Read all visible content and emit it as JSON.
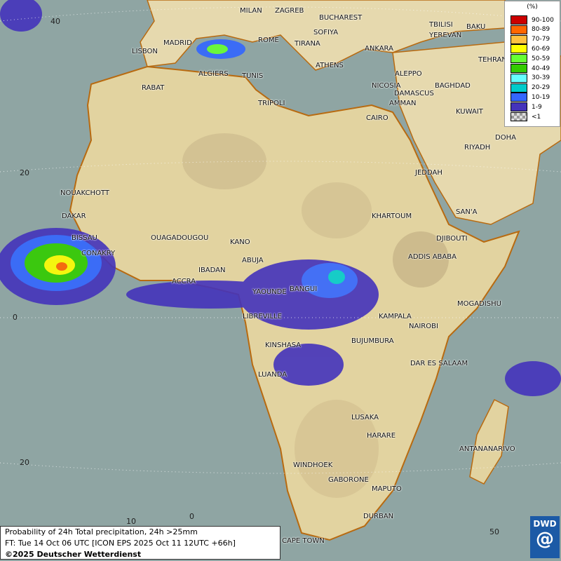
{
  "map": {
    "title": "Probability of 24h Total precipitation, 24h >25mm",
    "forecast_time": "FT: Tue 14 Oct 06 UTC [ICON EPS 2025 Oct 11 12UTC +66h]",
    "copyright": "©2025 Deutscher Wetterdienst",
    "logo": "DWD"
  },
  "legend": {
    "unit": "(%)",
    "items": [
      {
        "label": "90-100",
        "color": "#cc0000"
      },
      {
        "label": "80-89",
        "color": "#ff6600"
      },
      {
        "label": "70-79",
        "color": "#ffc040"
      },
      {
        "label": "60-69",
        "color": "#ffff00"
      },
      {
        "label": "50-59",
        "color": "#66ff33"
      },
      {
        "label": "40-49",
        "color": "#33cc00"
      },
      {
        "label": "30-39",
        "color": "#66ffff"
      },
      {
        "label": "20-29",
        "color": "#00cccc"
      },
      {
        "label": "10-19",
        "color": "#3366ff"
      },
      {
        "label": "1-9",
        "color": "#4433bb"
      },
      {
        "label": "<1",
        "color": "#bbbbbb"
      }
    ]
  },
  "lat_labels": [
    "40",
    "20",
    "0",
    "20"
  ],
  "lon_labels": [
    "10",
    "0",
    "50"
  ],
  "cities": [
    "MILAN",
    "ZAGREB",
    "BUCHAREST",
    "TBILISI",
    "BAKU",
    "YEREVAN",
    "SOFIYA",
    "MADRID",
    "ROME",
    "TIRANA",
    "ANKARA",
    "TEHRAN",
    "LISBON",
    "ATHENS",
    "ALGIERS",
    "TUNIS",
    "ALEPPO",
    "NICOSIA",
    "BAGHDAD",
    "RABAT",
    "DAMASCUS",
    "AMMAN",
    "TRIPOLI",
    "KUWAIT",
    "CAIRO",
    "DOHA",
    "RIYADH",
    "JEDDAH",
    "NOUAKCHOTT",
    "DAKAR",
    "KHARTOUM",
    "SAN'A",
    "BISSAU",
    "OUAGADOUGOU",
    "KANO",
    "DJIBOUTI",
    "CONAKRY",
    "ABUJA",
    "ADDIS ABABA",
    "IBADAN",
    "ACCRA",
    "YAOUNDE",
    "BANGUI",
    "MOGADISHU",
    "LIBREVILLE",
    "KAMPALA",
    "NAIROBI",
    "BUJUMBURA",
    "KINSHASA",
    "DAR ES SALAAM",
    "LUANDA",
    "LUSAKA",
    "HARARE",
    "ANTANANARIVO",
    "WINDHOEK",
    "GABORONE",
    "MAPUTO",
    "DURBAN",
    "CAPE TOWN"
  ]
}
